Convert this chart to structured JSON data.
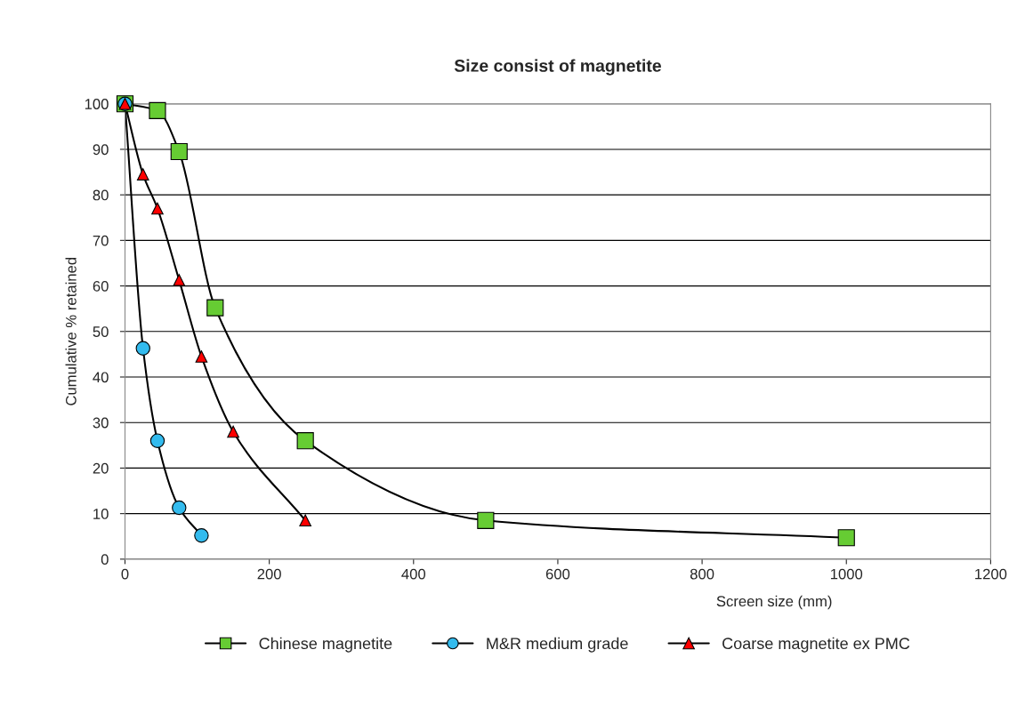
{
  "chart_data": {
    "type": "line",
    "title": "Size consist of magnetite",
    "xlabel": "Screen size (mm)",
    "ylabel": "Cumulative % retained",
    "xlim": [
      0,
      1200
    ],
    "xticks": [
      0,
      200,
      400,
      600,
      800,
      1000,
      1200
    ],
    "ylim": [
      0,
      100
    ],
    "yticks": [
      0,
      10,
      20,
      30,
      40,
      50,
      60,
      70,
      80,
      90,
      100
    ],
    "grid": "y",
    "legend": "bottom",
    "series": [
      {
        "name": "Chinese magnetite",
        "color": "#66cc33",
        "marker": "square",
        "x": [
          0,
          45,
          75,
          125,
          250,
          500,
          1000
        ],
        "values": [
          100,
          98.5,
          89.5,
          55.2,
          26,
          8.5,
          4.7
        ]
      },
      {
        "name": "M&R medium grade",
        "color": "#33bbee",
        "marker": "circle",
        "x": [
          0,
          25,
          45,
          75,
          106
        ],
        "values": [
          100,
          46.3,
          26,
          11.3,
          5.2
        ]
      },
      {
        "name": "Coarse magnetite ex PMC",
        "color": "#ff0000",
        "marker": "triangle",
        "x": [
          0,
          25,
          45,
          75,
          106,
          150,
          250
        ],
        "values": [
          100,
          84.5,
          77,
          61.3,
          44.5,
          28,
          8.5
        ]
      }
    ]
  }
}
